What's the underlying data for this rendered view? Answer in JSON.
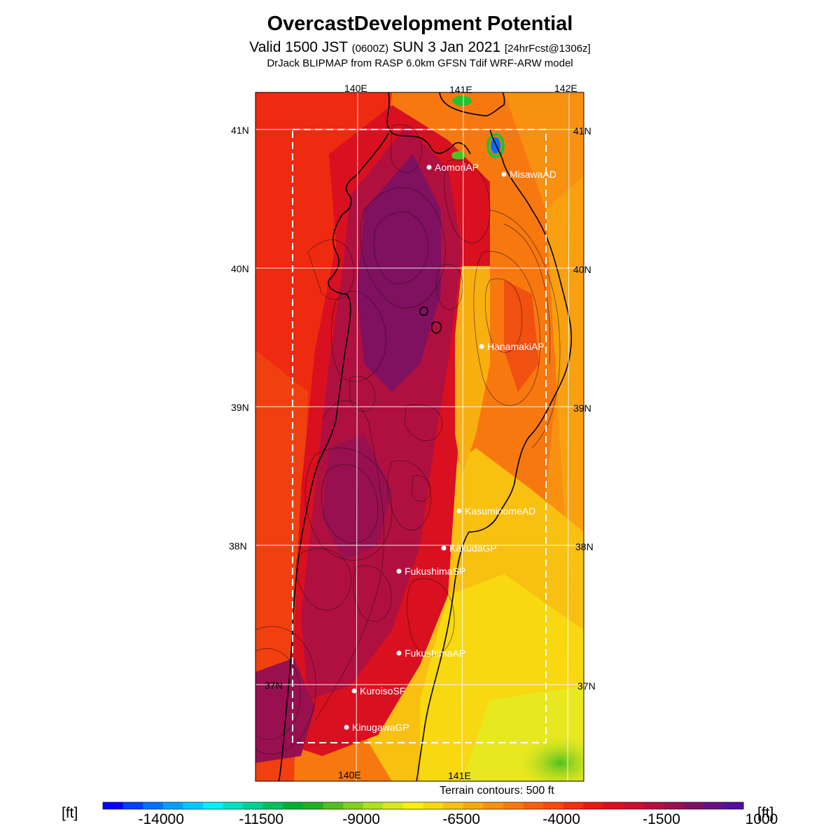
{
  "header": {
    "title": "OvercastDevelopment Potential",
    "valid_prefix": "Valid 1500 JST",
    "valid_utc": "(0600Z)",
    "valid_date": "SUN 3 Jan 2021",
    "forecast_info": "[24hrFcst@1306z]",
    "model_line": "DrJack BLIPMAP from RASP 6.0km GFSN Tdif WRF-ARW model"
  },
  "map": {
    "lon_labels_top": [
      "140E",
      "141E",
      "142E"
    ],
    "lon_labels_bottom": [
      "140E",
      "141E"
    ],
    "lat_labels": [
      "41N",
      "40N",
      "39N",
      "38N",
      "37N"
    ],
    "sites": [
      {
        "name": "AomoriAP"
      },
      {
        "name": "MisawaAD"
      },
      {
        "name": "HanamakiAP"
      },
      {
        "name": "KasuminomeAD"
      },
      {
        "name": "KakudaGP"
      },
      {
        "name": "FukushimaSP"
      },
      {
        "name": "FukushimaAP"
      },
      {
        "name": "KuroisoSF"
      },
      {
        "name": "KinugawaGP"
      }
    ]
  },
  "footer": {
    "terrain_note": "Terrain contours: 500 ft",
    "unit_left": "[ft]",
    "unit_right": "[ft]"
  },
  "colorbar": {
    "labels": [
      "-14000",
      "-11500",
      "-9000",
      "-6500",
      "-4000",
      "-1500",
      "1000"
    ],
    "colors": [
      "#0a00ff",
      "#0040ff",
      "#0070ff",
      "#00a0ff",
      "#00c8ff",
      "#00f0ff",
      "#00e0c0",
      "#00d090",
      "#00c060",
      "#00b030",
      "#20b020",
      "#50c020",
      "#80d020",
      "#b0e020",
      "#d8e820",
      "#f8f010",
      "#f8d810",
      "#f8c010",
      "#f8a810",
      "#f89010",
      "#f87810",
      "#f86010",
      "#f84810",
      "#f03010",
      "#e81810",
      "#d81020",
      "#c81030",
      "#b01040",
      "#981050",
      "#801060",
      "#681080",
      "#5010a0"
    ]
  }
}
